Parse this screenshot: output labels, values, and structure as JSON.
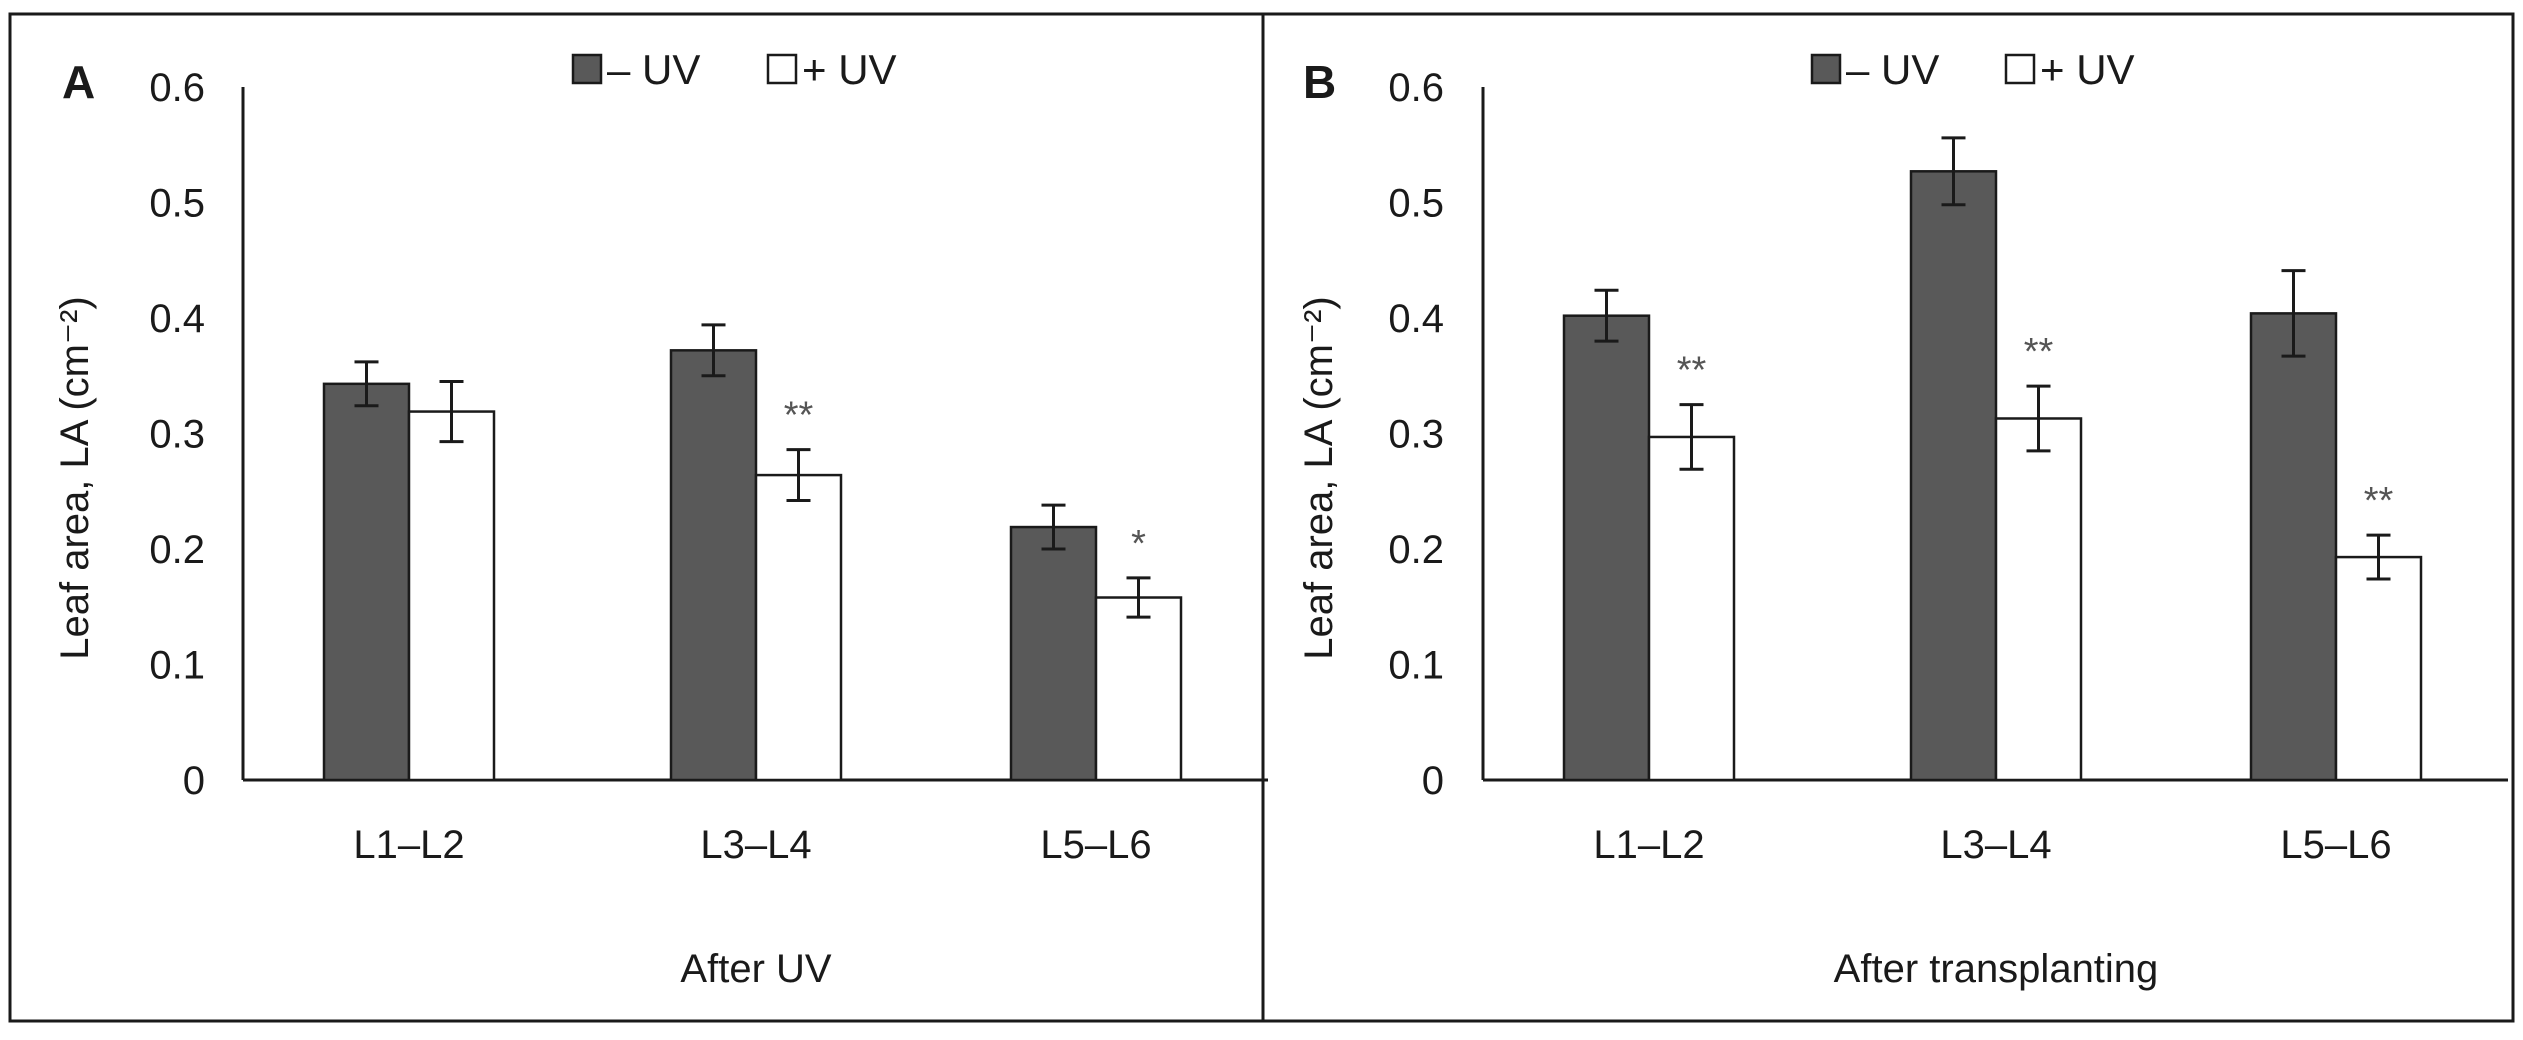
{
  "chart_data": [
    {
      "type": "bar",
      "panel_label": "A",
      "title": "",
      "xlabel": "After UV",
      "ylabel": "Leaf area, LA (cm⁻²)",
      "ylim": [
        0,
        0.6
      ],
      "yticks": [
        "0",
        "0.1",
        "0.2",
        "0.3",
        "0.4",
        "0.5",
        "0.6"
      ],
      "categories": [
        "L1–L2",
        "L3–L4",
        "L5–L6"
      ],
      "series": [
        {
          "name": "– UV",
          "values": [
            0.343,
            0.372,
            0.219
          ],
          "errors": [
            0.019,
            0.022,
            0.019
          ],
          "significance": [
            "",
            "",
            ""
          ]
        },
        {
          "name": "+ UV",
          "values": [
            0.319,
            0.264,
            0.158
          ],
          "errors": [
            0.026,
            0.022,
            0.017
          ],
          "significance": [
            "",
            "**",
            "*"
          ]
        }
      ],
      "legend": [
        "– UV",
        "+ UV"
      ],
      "legend_position": "top-center"
    },
    {
      "type": "bar",
      "panel_label": "B",
      "title": "",
      "xlabel": "After transplanting",
      "ylabel": "Leaf area, LA (cm⁻²)",
      "ylim": [
        0,
        0.6
      ],
      "yticks": [
        "0",
        "0.1",
        "0.2",
        "0.3",
        "0.4",
        "0.5",
        "0.6"
      ],
      "categories": [
        "L1–L2",
        "L3–L4",
        "L5–L6"
      ],
      "series": [
        {
          "name": "– UV",
          "values": [
            0.402,
            0.527,
            0.404
          ],
          "errors": [
            0.022,
            0.029,
            0.037
          ],
          "significance": [
            "",
            "",
            ""
          ]
        },
        {
          "name": "+ UV",
          "values": [
            0.297,
            0.313,
            0.193
          ],
          "errors": [
            0.028,
            0.028,
            0.019
          ],
          "significance": [
            "**",
            "**",
            "**"
          ]
        }
      ],
      "legend": [
        "– UV",
        "+ UV"
      ],
      "legend_position": "top-center"
    }
  ],
  "colors": {
    "minus_uv": "#595959",
    "plus_uv": "#ffffff",
    "ink": "#1a1a1a"
  }
}
